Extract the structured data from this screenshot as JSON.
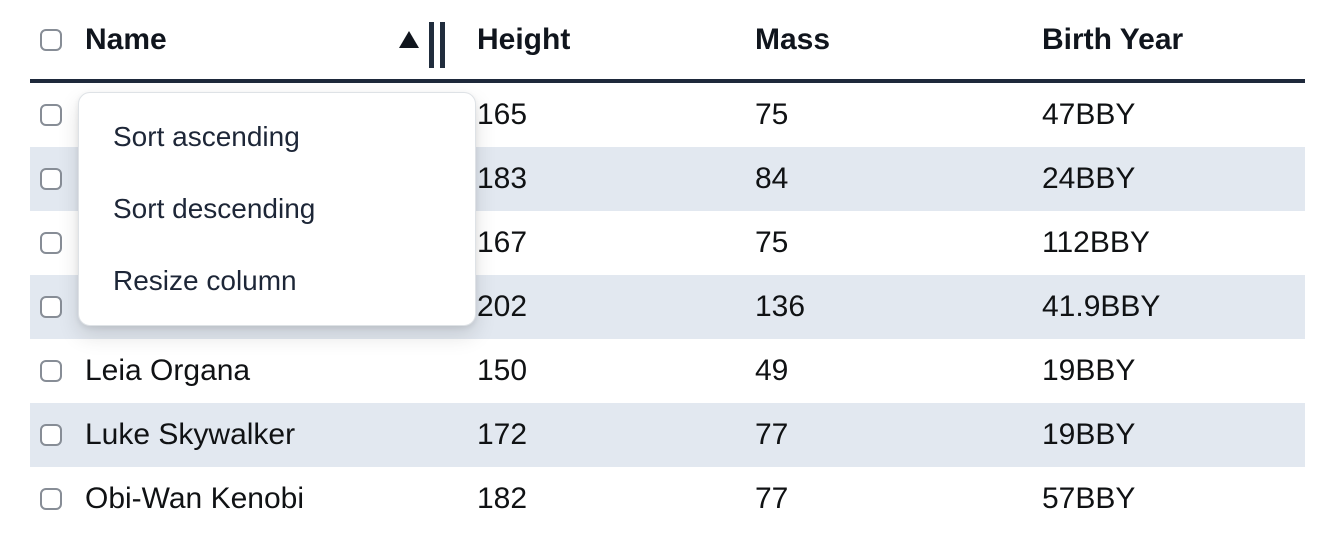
{
  "table": {
    "columns": [
      {
        "label": "Name",
        "sort_indicator": "ascending"
      },
      {
        "label": "Height"
      },
      {
        "label": "Mass"
      },
      {
        "label": "Birth Year"
      }
    ],
    "rows": [
      {
        "name": "",
        "height": "165",
        "mass": "75",
        "birth_year": "47BBY"
      },
      {
        "name": "",
        "height": "183",
        "mass": "84",
        "birth_year": "24BBY"
      },
      {
        "name": "",
        "height": "167",
        "mass": "75",
        "birth_year": "112BBY"
      },
      {
        "name": "",
        "height": "202",
        "mass": "136",
        "birth_year": "41.9BBY"
      },
      {
        "name": "Leia Organa",
        "height": "150",
        "mass": "49",
        "birth_year": "19BBY"
      },
      {
        "name": "Luke Skywalker",
        "height": "172",
        "mass": "77",
        "birth_year": "19BBY"
      },
      {
        "name": "Obi-Wan Kenobi",
        "height": "182",
        "mass": "77",
        "birth_year": "57BBY"
      }
    ]
  },
  "menu": {
    "items": [
      {
        "label": "Sort ascending"
      },
      {
        "label": "Sort descending"
      },
      {
        "label": "Resize column"
      }
    ]
  },
  "colors": {
    "stripe": "#e2e8f0",
    "header_border": "#1e293b",
    "menu_text": "#1d2637",
    "checkbox_border": "#878d96"
  }
}
